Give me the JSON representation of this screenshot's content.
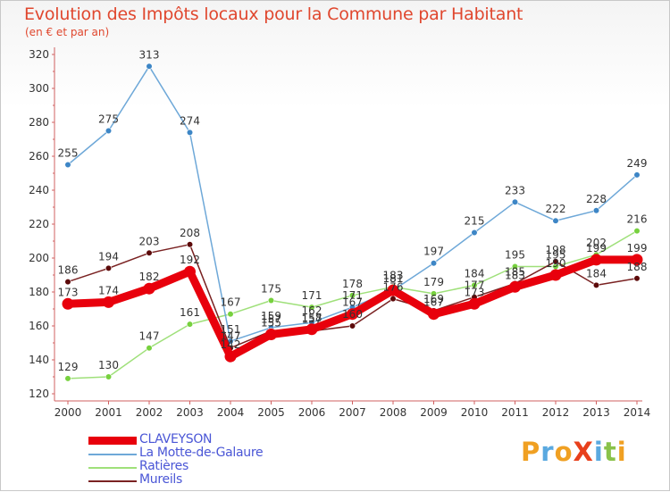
{
  "chart_data": {
    "type": "line",
    "title": "Evolution des Impôts locaux pour la Commune par Habitant",
    "subtitle": "(en € et par an)",
    "x": [
      "2000",
      "2001",
      "2002",
      "2003",
      "2004",
      "2005",
      "2006",
      "2007",
      "2008",
      "2009",
      "2010",
      "2011",
      "2012",
      "2013",
      "2014"
    ],
    "ylim": [
      120,
      320
    ],
    "yticks": [
      "120",
      "140",
      "160",
      "180",
      "200",
      "220",
      "240",
      "260",
      "280",
      "300",
      "320"
    ],
    "xlabel": "",
    "ylabel": "",
    "grid": false,
    "legend_position": "bottom-left",
    "series": [
      {
        "name": "CLAVEYSON",
        "color": "#e8000c",
        "marker": "#e8000c",
        "values": [
          173,
          174,
          182,
          192,
          142,
          155,
          158,
          167,
          181,
          167,
          173,
          183,
          190,
          199,
          199
        ],
        "labels": [
          "173",
          "174",
          "182",
          "192",
          "142",
          "155",
          "158",
          "167",
          "181",
          "167",
          "173",
          "183",
          "190",
          "199",
          "199"
        ]
      },
      {
        "name": "La Motte-de-Galaure",
        "color": "#6ea8d8",
        "marker": "#3d86c6",
        "values": [
          255,
          275,
          313,
          274,
          151,
          159,
          162,
          171,
          181,
          197,
          215,
          233,
          222,
          228,
          249
        ],
        "labels": [
          "255",
          "275",
          "313",
          "274",
          "151",
          "159",
          "162",
          "171",
          "181",
          "197",
          "215",
          "233",
          "222",
          "228",
          "249"
        ]
      },
      {
        "name": "Ratières",
        "color": "#9fe07a",
        "marker": "#77d13e",
        "values": [
          129,
          130,
          147,
          161,
          167,
          175,
          171,
          178,
          183,
          179,
          184,
          195,
          195,
          202,
          216
        ],
        "labels": [
          "129",
          "130",
          "147",
          "161",
          "167",
          "175",
          "171",
          "178",
          "183",
          "179",
          "184",
          "195",
          "195",
          "202",
          "216"
        ]
      },
      {
        "name": "Mureils",
        "color": "#7a2222",
        "marker": "#5c0a0a",
        "values": [
          186,
          194,
          203,
          208,
          147,
          157,
          157,
          160,
          176,
          169,
          177,
          185,
          198,
          184,
          188
        ],
        "labels": [
          "186",
          "194",
          "203",
          "208",
          "147",
          "157",
          "157",
          "160",
          "176",
          "169",
          "177",
          "185",
          "198",
          "184",
          "188"
        ]
      }
    ]
  },
  "logo": {
    "text": "ProXiti",
    "letters": [
      "P",
      "r",
      "o",
      "X",
      "i",
      "t",
      "i"
    ],
    "colors": [
      "#f0a022",
      "#5aa9e0",
      "#f0a022",
      "#e8401c",
      "#5aa9e0",
      "#8ac24a",
      "#f0a022"
    ]
  }
}
